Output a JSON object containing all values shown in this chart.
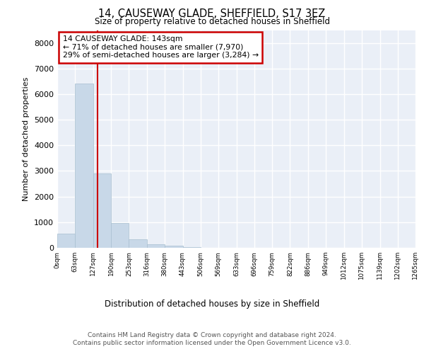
{
  "title1": "14, CAUSEWAY GLADE, SHEFFIELD, S17 3EZ",
  "title2": "Size of property relative to detached houses in Sheffield",
  "xlabel": "Distribution of detached houses by size in Sheffield",
  "ylabel": "Number of detached properties",
  "bar_values": [
    560,
    6400,
    2900,
    980,
    340,
    150,
    90,
    30,
    10,
    5,
    3,
    2,
    1,
    1,
    0,
    0,
    0,
    0,
    0,
    0
  ],
  "bin_edges": [
    0,
    63,
    127,
    190,
    253,
    316,
    380,
    443,
    506,
    569,
    633,
    696,
    759,
    822,
    886,
    949,
    1012,
    1075,
    1139,
    1202,
    1265
  ],
  "bar_color": "#c8d8e8",
  "bar_edge_color": "#a8bfd0",
  "ylim": [
    0,
    8500
  ],
  "yticks": [
    0,
    1000,
    2000,
    3000,
    4000,
    5000,
    6000,
    7000,
    8000
  ],
  "red_line_x": 143,
  "annotation_text": "14 CAUSEWAY GLADE: 143sqm\n← 71% of detached houses are smaller (7,970)\n29% of semi-detached houses are larger (3,284) →",
  "annotation_box_color": "#cc0000",
  "background_color": "#eaeff7",
  "grid_color": "#ffffff",
  "footer_line1": "Contains HM Land Registry data © Crown copyright and database right 2024.",
  "footer_line2": "Contains public sector information licensed under the Open Government Licence v3.0."
}
